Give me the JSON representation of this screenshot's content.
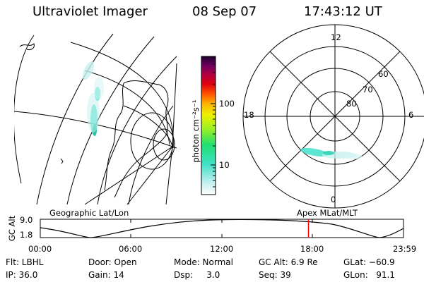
{
  "header": {
    "title": "Ultraviolet Imager",
    "date": "08 Sep 07",
    "time": "17:43:12 UT"
  },
  "colorbar": {
    "label": "photon cm⁻²s⁻¹",
    "ticks": [
      {
        "label": "100",
        "value": 100
      },
      {
        "label": "10",
        "value": 10
      }
    ]
  },
  "polar_plot": {
    "mlt_labels": {
      "top": "12",
      "left": "18",
      "right": "6",
      "bottom": "0"
    },
    "lat_labels": [
      "60",
      "70",
      "80"
    ]
  },
  "panel_labels": {
    "left": "Geographic Lat/Lon",
    "right": "Apex MLat/MLT"
  },
  "orbit_plot": {
    "ylabel": "GC Alt",
    "yticks": [
      "9.0",
      "1.8"
    ],
    "xticks": [
      "00:00",
      "06:00",
      "12:00",
      "18:00",
      "23:59"
    ],
    "current_time_hours": 17.72,
    "current_marker_color": "#ff0000"
  },
  "status": {
    "filter": "Flt: LBHL",
    "ip": "IP: 36.0",
    "door": "Door: Open",
    "gain": "Gain: 14",
    "mode": "Mode: Normal",
    "dsp": "Dsp:     3.0",
    "gc_alt": "GC Alt: 6.9 Re",
    "seq": "Seq: 39",
    "glat": "GLat: −60.9",
    "glon": "GLon:   91.1"
  }
}
